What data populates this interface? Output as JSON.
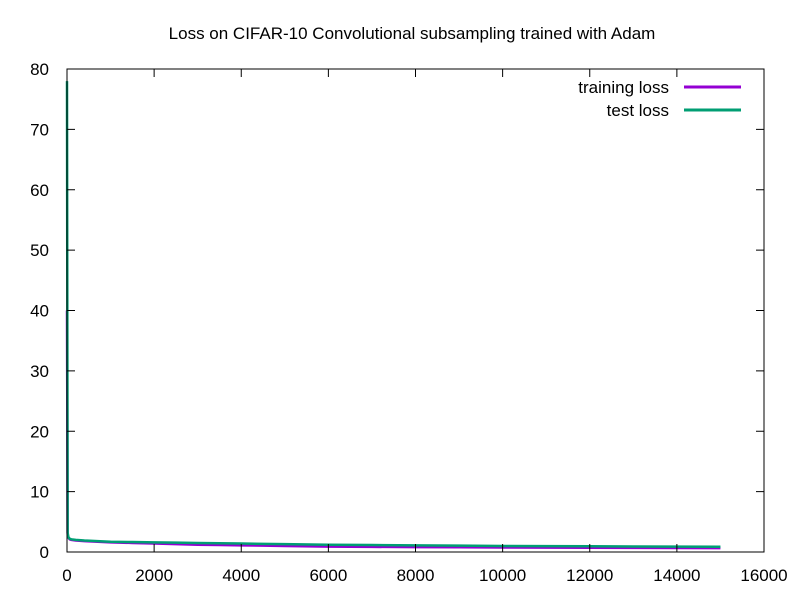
{
  "chart_data": {
    "type": "line",
    "title": "Loss on CIFAR-10 Convolutional subsampling trained with Adam",
    "xlabel": "",
    "ylabel": "",
    "xlim": [
      0,
      16000
    ],
    "ylim": [
      0,
      80
    ],
    "x_ticks": [
      0,
      2000,
      4000,
      6000,
      8000,
      10000,
      12000,
      14000,
      16000
    ],
    "y_ticks": [
      0,
      10,
      20,
      30,
      40,
      50,
      60,
      70,
      80
    ],
    "grid": false,
    "legend_position": "top-right",
    "series": [
      {
        "name": "training loss",
        "color": "#9400d3",
        "x": [
          0,
          15,
          30,
          60,
          100,
          200,
          400,
          700,
          1000,
          1500,
          2000,
          2500,
          3000,
          3500,
          4000,
          4500,
          5000,
          6000,
          7000,
          8000,
          9000,
          10000,
          11000,
          12000,
          13000,
          14000,
          15000
        ],
        "y": [
          40,
          3.0,
          2.4,
          2.1,
          2.0,
          1.9,
          1.8,
          1.7,
          1.6,
          1.5,
          1.4,
          1.3,
          1.2,
          1.15,
          1.1,
          1.05,
          1.0,
          0.9,
          0.85,
          0.8,
          0.78,
          0.75,
          0.72,
          0.7,
          0.68,
          0.66,
          0.65
        ]
      },
      {
        "name": "test loss",
        "color": "#009e73",
        "x": [
          0,
          15,
          30,
          60,
          100,
          200,
          400,
          700,
          1000,
          1500,
          2000,
          2500,
          3000,
          3500,
          4000,
          4500,
          5000,
          6000,
          7000,
          8000,
          9000,
          10000,
          11000,
          12000,
          13000,
          14000,
          15000
        ],
        "y": [
          78,
          3.2,
          2.5,
          2.2,
          2.1,
          2.0,
          1.9,
          1.8,
          1.7,
          1.65,
          1.6,
          1.55,
          1.5,
          1.45,
          1.4,
          1.35,
          1.3,
          1.2,
          1.15,
          1.1,
          1.05,
          1.0,
          0.98,
          0.95,
          0.92,
          0.9,
          0.88
        ]
      }
    ]
  }
}
